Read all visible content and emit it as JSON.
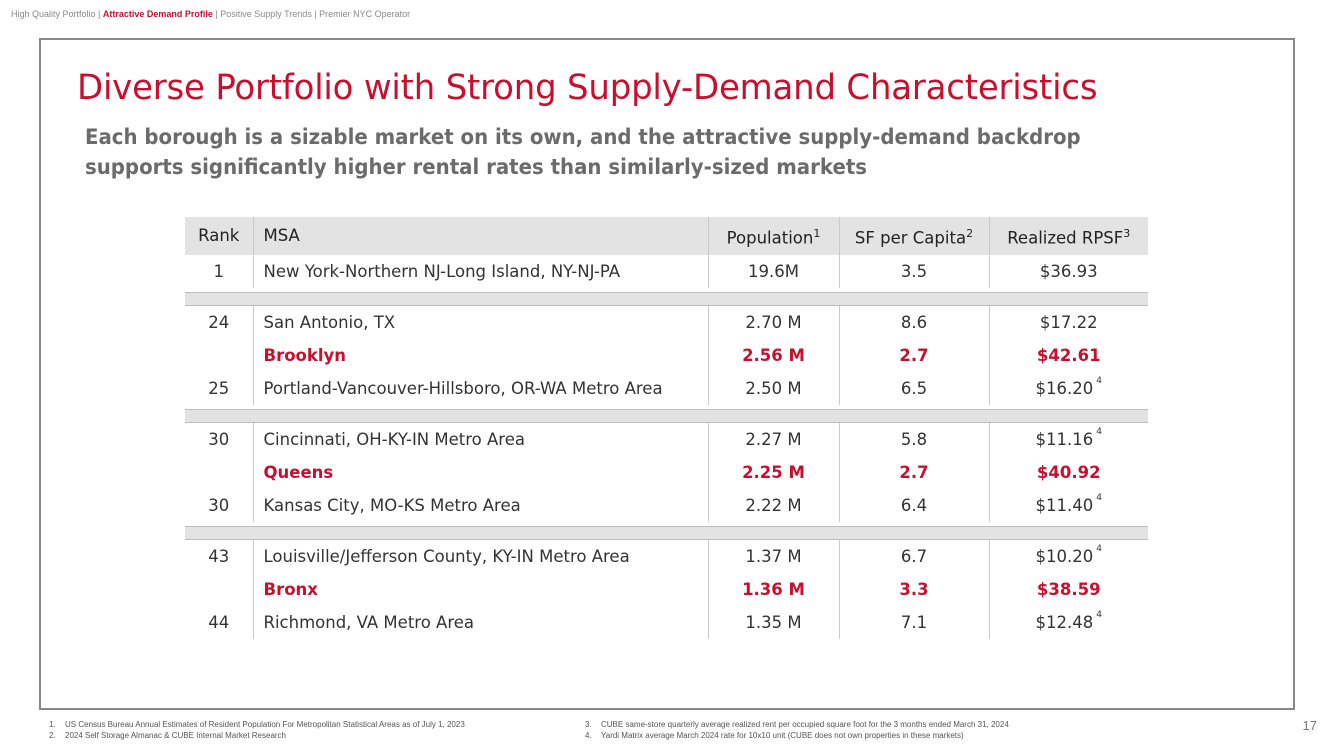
{
  "breadcrumb": {
    "item1": "High Quality Portfolio",
    "sep1": " | ",
    "item2": "Attractive Demand Profile",
    "sep2": " | ",
    "item3": "Positive Supply Trends",
    "sep3": " | ",
    "item4": "Premier NYC Operator"
  },
  "title": "Diverse Portfolio with Strong Supply-Demand Characteristics",
  "subtitle": "Each borough is a sizable market on its own, and the attractive supply-demand backdrop supports significantly higher rental rates than similarly-sized markets",
  "table": {
    "headers": {
      "rank": "Rank",
      "msa": "MSA",
      "population": "Population",
      "population_fn": "1",
      "sf": "SF per Capita",
      "sf_fn": "2",
      "rpsf": "Realized RPSF",
      "rpsf_fn": "3"
    },
    "rows": [
      {
        "rank": "1",
        "msa": "New York-Northern NJ-Long Island, NY-NJ-PA",
        "population": "19.6M",
        "sf": "3.5",
        "rpsf": "$36.93",
        "fn": ""
      },
      {
        "rank": "24",
        "msa": "San Antonio, TX",
        "population": "2.70 M",
        "sf": "8.6",
        "rpsf": "$17.22",
        "fn": ""
      },
      {
        "rank": "",
        "msa": "Brooklyn",
        "population": "2.56 M",
        "sf": "2.7",
        "rpsf": "$42.61",
        "fn": ""
      },
      {
        "rank": "25",
        "msa": "Portland-Vancouver-Hillsboro, OR-WA Metro Area",
        "population": "2.50 M",
        "sf": "6.5",
        "rpsf": "$16.20",
        "fn": "4"
      },
      {
        "rank": "30",
        "msa": "Cincinnati, OH-KY-IN Metro Area",
        "population": "2.27 M",
        "sf": "5.8",
        "rpsf": "$11.16",
        "fn": "4"
      },
      {
        "rank": "",
        "msa": "Queens",
        "population": "2.25 M",
        "sf": "2.7",
        "rpsf": "$40.92",
        "fn": ""
      },
      {
        "rank": "30",
        "msa": "Kansas City, MO-KS Metro Area",
        "population": "2.22 M",
        "sf": "6.4",
        "rpsf": "$11.40",
        "fn": "4"
      },
      {
        "rank": "43",
        "msa": "Louisville/Jefferson County, KY-IN Metro Area",
        "population": "1.37 M",
        "sf": "6.7",
        "rpsf": "$10.20",
        "fn": "4"
      },
      {
        "rank": "",
        "msa": "Bronx",
        "population": "1.36 M",
        "sf": "3.3",
        "rpsf": "$38.59",
        "fn": ""
      },
      {
        "rank": "44",
        "msa": "Richmond, VA Metro Area",
        "population": "1.35 M",
        "sf": "7.1",
        "rpsf": "$12.48",
        "fn": "4"
      }
    ]
  },
  "footnotes": [
    {
      "num": "1.",
      "text": "US Census Bureau Annual Estimates of Resident Population For Metropolitan Statistical Areas as of July 1, 2023"
    },
    {
      "num": "2.",
      "text": "2024 Self Storage Almanac & CUBE Internal Market Research"
    },
    {
      "num": "3.",
      "text": "CUBE same-store quarterly average realized rent per occupied square foot for the 3 months ended March 31, 2024"
    },
    {
      "num": "4.",
      "text": "Yardi Matrix average March 2024 rate for 10x10 unit (CUBE does not own properties in these markets)"
    }
  ],
  "page_number": "17",
  "colors": {
    "accent": "#c8102e",
    "header_bg": "#e3e3e3",
    "frame": "#888888"
  }
}
